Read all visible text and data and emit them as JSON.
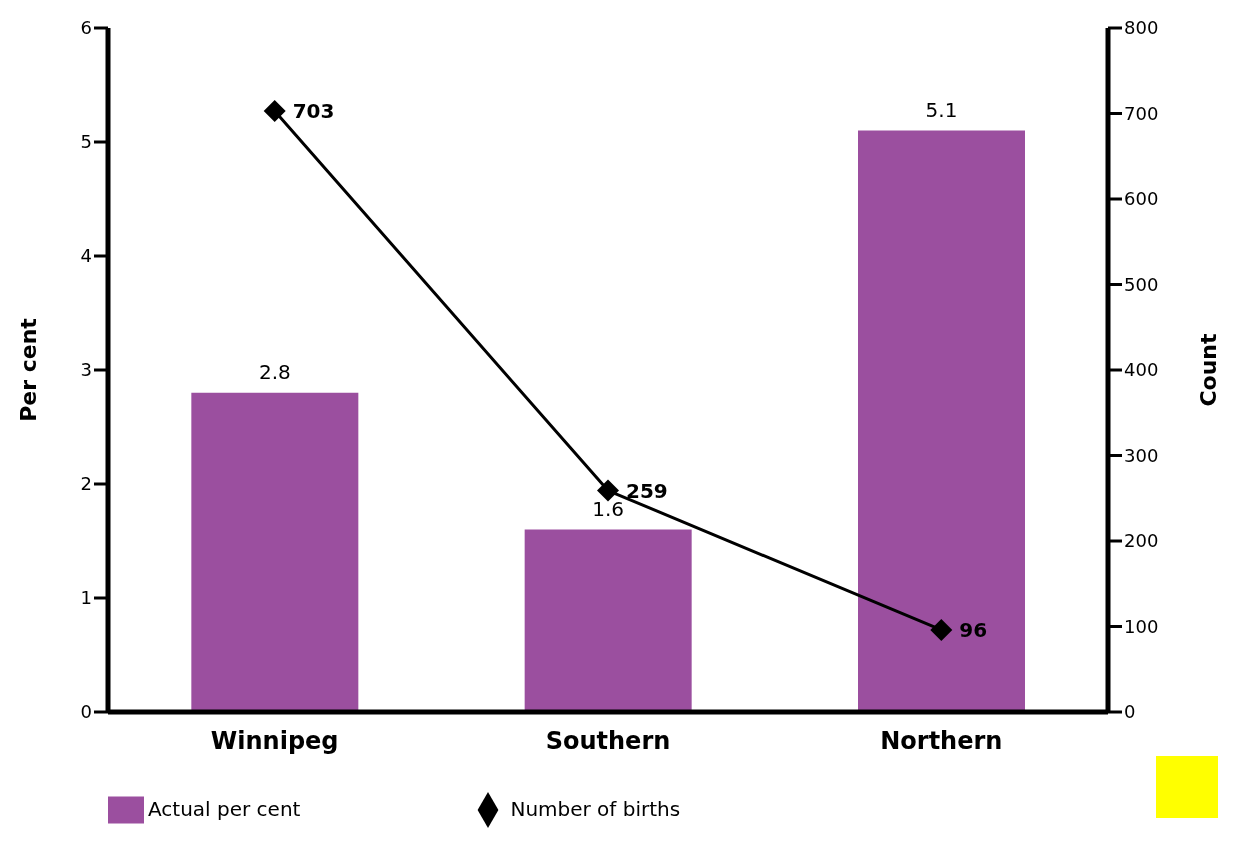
{
  "chart_data": {
    "type": "bar",
    "categories": [
      "Winnipeg",
      "Southern",
      "Northern"
    ],
    "series": [
      {
        "name": "Actual per cent",
        "color": "#9b4f9f",
        "values": [
          2.8,
          1.6,
          5.1
        ]
      },
      {
        "name": "Number of births",
        "type": "line",
        "axis": "y2",
        "color": "#000000",
        "values": [
          703,
          259,
          96
        ],
        "marker": "diamond"
      }
    ],
    "ylabel": "Per cent",
    "y2label": "Count",
    "ylim": [
      0,
      6
    ],
    "yticks": [
      0,
      1,
      2,
      3,
      4,
      5,
      6
    ],
    "y2lim": [
      0,
      800
    ],
    "y2ticks": [
      0,
      100,
      200,
      300,
      400,
      500,
      600,
      700,
      800
    ],
    "data_labels": true,
    "grid": false,
    "legend": "bottom"
  }
}
